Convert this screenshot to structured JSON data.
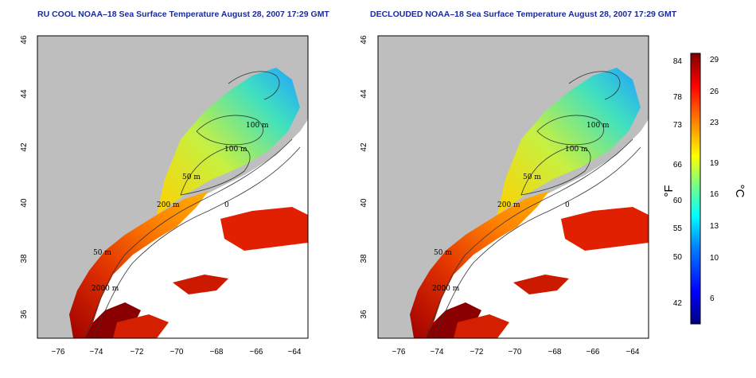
{
  "panels": [
    {
      "id": "left",
      "title": "RU COOL NOAA–18 Sea Surface Temperature August 28, 2007 17:29 GMT",
      "contour_labels": [
        "100 m",
        "100 m",
        "50 m",
        "200 m",
        "0",
        "50 m",
        "2000 m"
      ]
    },
    {
      "id": "right",
      "title": "DECLOUDED NOAA–18 Sea Surface Temperature August 28, 2007 17:29 GMT",
      "contour_labels": [
        "100 m",
        "100 m",
        "50 m",
        "200 m",
        "0",
        "50 m",
        "2000 m"
      ]
    }
  ],
  "axes": {
    "x_ticks": [
      "−76",
      "−74",
      "−72",
      "−70",
      "−68",
      "−66",
      "−64"
    ],
    "y_ticks": [
      "36",
      "38",
      "40",
      "42",
      "44",
      "46"
    ]
  },
  "colorbar": {
    "fahrenheit_ticks": [
      "84",
      "78",
      "73",
      "66",
      "60",
      "55",
      "50",
      "42"
    ],
    "celsius_ticks": [
      "29",
      "26",
      "23",
      "19",
      "16",
      "13",
      "10",
      "6"
    ],
    "fahrenheit_label": "°F",
    "celsius_label": "°C",
    "range_c": [
      3,
      30
    ],
    "colors": [
      "#00007f",
      "#0000ff",
      "#007fff",
      "#00ffff",
      "#7fff7f",
      "#ffff00",
      "#ff7f00",
      "#ff0000",
      "#7f0000"
    ]
  },
  "colors": {
    "land": "#bebebe",
    "no_data": "#ffffff",
    "title": "#1a2a9a"
  }
}
